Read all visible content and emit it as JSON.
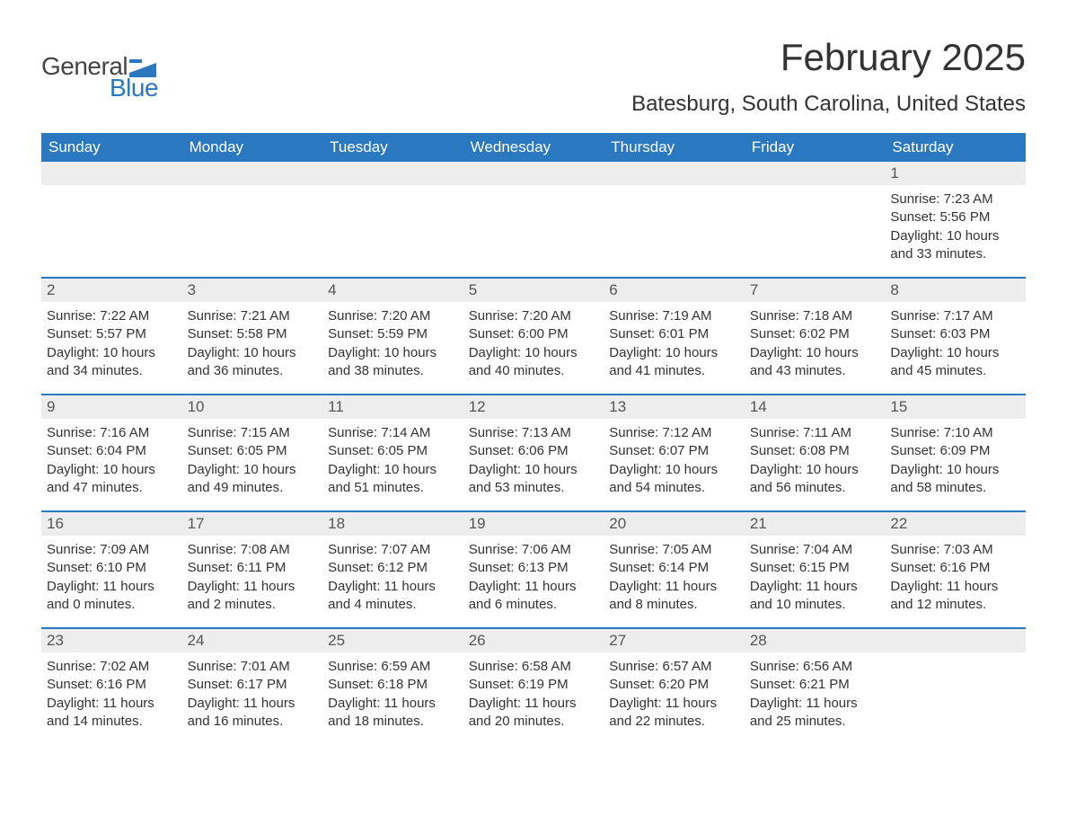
{
  "logo": {
    "text_general": "General",
    "text_blue": "Blue",
    "flag_color": "#2a78bf"
  },
  "title": {
    "month": "February 2025",
    "location": "Batesburg, South Carolina, United States"
  },
  "colors": {
    "header_bg": "#2a78bf",
    "header_text": "#ffffff",
    "daynum_bg": "#ededed",
    "daynum_text": "#555555",
    "body_text": "#333333",
    "week_border": "#2a78bf",
    "page_bg": "#ffffff"
  },
  "fonts": {
    "title_size_pt": 42,
    "location_size_pt": 24,
    "weekday_size_pt": 17,
    "daynum_size_pt": 17,
    "body_size_pt": 15,
    "family": "Arial"
  },
  "weekdays": [
    "Sunday",
    "Monday",
    "Tuesday",
    "Wednesday",
    "Thursday",
    "Friday",
    "Saturday"
  ],
  "weeks": [
    [
      {
        "num": "",
        "sunrise": "",
        "sunset": "",
        "daylight": ""
      },
      {
        "num": "",
        "sunrise": "",
        "sunset": "",
        "daylight": ""
      },
      {
        "num": "",
        "sunrise": "",
        "sunset": "",
        "daylight": ""
      },
      {
        "num": "",
        "sunrise": "",
        "sunset": "",
        "daylight": ""
      },
      {
        "num": "",
        "sunrise": "",
        "sunset": "",
        "daylight": ""
      },
      {
        "num": "",
        "sunrise": "",
        "sunset": "",
        "daylight": ""
      },
      {
        "num": "1",
        "sunrise": "Sunrise: 7:23 AM",
        "sunset": "Sunset: 5:56 PM",
        "daylight": "Daylight: 10 hours and 33 minutes."
      }
    ],
    [
      {
        "num": "2",
        "sunrise": "Sunrise: 7:22 AM",
        "sunset": "Sunset: 5:57 PM",
        "daylight": "Daylight: 10 hours and 34 minutes."
      },
      {
        "num": "3",
        "sunrise": "Sunrise: 7:21 AM",
        "sunset": "Sunset: 5:58 PM",
        "daylight": "Daylight: 10 hours and 36 minutes."
      },
      {
        "num": "4",
        "sunrise": "Sunrise: 7:20 AM",
        "sunset": "Sunset: 5:59 PM",
        "daylight": "Daylight: 10 hours and 38 minutes."
      },
      {
        "num": "5",
        "sunrise": "Sunrise: 7:20 AM",
        "sunset": "Sunset: 6:00 PM",
        "daylight": "Daylight: 10 hours and 40 minutes."
      },
      {
        "num": "6",
        "sunrise": "Sunrise: 7:19 AM",
        "sunset": "Sunset: 6:01 PM",
        "daylight": "Daylight: 10 hours and 41 minutes."
      },
      {
        "num": "7",
        "sunrise": "Sunrise: 7:18 AM",
        "sunset": "Sunset: 6:02 PM",
        "daylight": "Daylight: 10 hours and 43 minutes."
      },
      {
        "num": "8",
        "sunrise": "Sunrise: 7:17 AM",
        "sunset": "Sunset: 6:03 PM",
        "daylight": "Daylight: 10 hours and 45 minutes."
      }
    ],
    [
      {
        "num": "9",
        "sunrise": "Sunrise: 7:16 AM",
        "sunset": "Sunset: 6:04 PM",
        "daylight": "Daylight: 10 hours and 47 minutes."
      },
      {
        "num": "10",
        "sunrise": "Sunrise: 7:15 AM",
        "sunset": "Sunset: 6:05 PM",
        "daylight": "Daylight: 10 hours and 49 minutes."
      },
      {
        "num": "11",
        "sunrise": "Sunrise: 7:14 AM",
        "sunset": "Sunset: 6:05 PM",
        "daylight": "Daylight: 10 hours and 51 minutes."
      },
      {
        "num": "12",
        "sunrise": "Sunrise: 7:13 AM",
        "sunset": "Sunset: 6:06 PM",
        "daylight": "Daylight: 10 hours and 53 minutes."
      },
      {
        "num": "13",
        "sunrise": "Sunrise: 7:12 AM",
        "sunset": "Sunset: 6:07 PM",
        "daylight": "Daylight: 10 hours and 54 minutes."
      },
      {
        "num": "14",
        "sunrise": "Sunrise: 7:11 AM",
        "sunset": "Sunset: 6:08 PM",
        "daylight": "Daylight: 10 hours and 56 minutes."
      },
      {
        "num": "15",
        "sunrise": "Sunrise: 7:10 AM",
        "sunset": "Sunset: 6:09 PM",
        "daylight": "Daylight: 10 hours and 58 minutes."
      }
    ],
    [
      {
        "num": "16",
        "sunrise": "Sunrise: 7:09 AM",
        "sunset": "Sunset: 6:10 PM",
        "daylight": "Daylight: 11 hours and 0 minutes."
      },
      {
        "num": "17",
        "sunrise": "Sunrise: 7:08 AM",
        "sunset": "Sunset: 6:11 PM",
        "daylight": "Daylight: 11 hours and 2 minutes."
      },
      {
        "num": "18",
        "sunrise": "Sunrise: 7:07 AM",
        "sunset": "Sunset: 6:12 PM",
        "daylight": "Daylight: 11 hours and 4 minutes."
      },
      {
        "num": "19",
        "sunrise": "Sunrise: 7:06 AM",
        "sunset": "Sunset: 6:13 PM",
        "daylight": "Daylight: 11 hours and 6 minutes."
      },
      {
        "num": "20",
        "sunrise": "Sunrise: 7:05 AM",
        "sunset": "Sunset: 6:14 PM",
        "daylight": "Daylight: 11 hours and 8 minutes."
      },
      {
        "num": "21",
        "sunrise": "Sunrise: 7:04 AM",
        "sunset": "Sunset: 6:15 PM",
        "daylight": "Daylight: 11 hours and 10 minutes."
      },
      {
        "num": "22",
        "sunrise": "Sunrise: 7:03 AM",
        "sunset": "Sunset: 6:16 PM",
        "daylight": "Daylight: 11 hours and 12 minutes."
      }
    ],
    [
      {
        "num": "23",
        "sunrise": "Sunrise: 7:02 AM",
        "sunset": "Sunset: 6:16 PM",
        "daylight": "Daylight: 11 hours and 14 minutes."
      },
      {
        "num": "24",
        "sunrise": "Sunrise: 7:01 AM",
        "sunset": "Sunset: 6:17 PM",
        "daylight": "Daylight: 11 hours and 16 minutes."
      },
      {
        "num": "25",
        "sunrise": "Sunrise: 6:59 AM",
        "sunset": "Sunset: 6:18 PM",
        "daylight": "Daylight: 11 hours and 18 minutes."
      },
      {
        "num": "26",
        "sunrise": "Sunrise: 6:58 AM",
        "sunset": "Sunset: 6:19 PM",
        "daylight": "Daylight: 11 hours and 20 minutes."
      },
      {
        "num": "27",
        "sunrise": "Sunrise: 6:57 AM",
        "sunset": "Sunset: 6:20 PM",
        "daylight": "Daylight: 11 hours and 22 minutes."
      },
      {
        "num": "28",
        "sunrise": "Sunrise: 6:56 AM",
        "sunset": "Sunset: 6:21 PM",
        "daylight": "Daylight: 11 hours and 25 minutes."
      },
      {
        "num": "",
        "sunrise": "",
        "sunset": "",
        "daylight": ""
      }
    ]
  ]
}
